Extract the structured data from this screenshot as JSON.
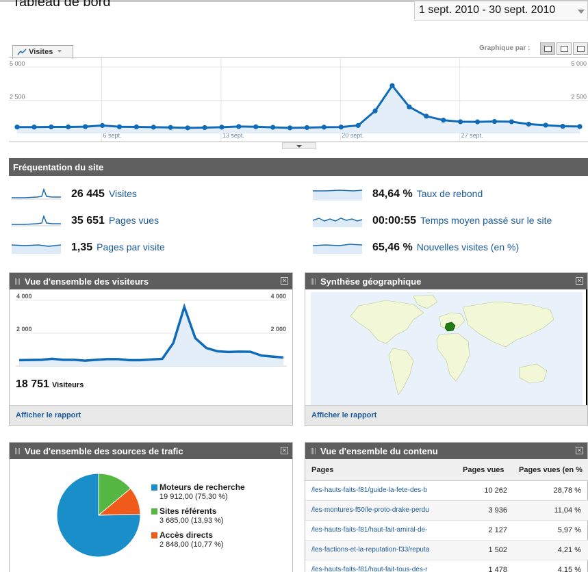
{
  "header": {
    "title": "Tableau de bord",
    "date_range": "1 sept. 2010 - 30 sept. 2010"
  },
  "main_chart": {
    "metric_label": "Visites",
    "graph_by_label": "Graphique par :"
  },
  "chart_data": [
    {
      "type": "line",
      "ylim": [
        0,
        5000
      ],
      "yticks": [
        "5 000",
        "2 500"
      ],
      "x_ticks": [
        "6 sept.",
        "13 sept.",
        "20 sept.",
        "27 sept."
      ],
      "series": [
        {
          "values": [
            480,
            480,
            490,
            490,
            510,
            600,
            500,
            490,
            470,
            450,
            420,
            440,
            470,
            520,
            500,
            460,
            420,
            440,
            470,
            480,
            600,
            1700,
            3600,
            2000,
            1300,
            1000,
            880,
            870,
            900,
            880,
            700,
            620,
            540,
            520
          ]
        }
      ]
    },
    {
      "type": "line",
      "ylim": [
        0,
        4000
      ],
      "yticks": [
        "4 000",
        "2 000"
      ],
      "series": [
        {
          "values": [
            360,
            370,
            380,
            440,
            380,
            380,
            330,
            380,
            420,
            420,
            360,
            360,
            400,
            440,
            1400,
            3600,
            1700,
            1100,
            900,
            860,
            880,
            870,
            640,
            580,
            520
          ]
        }
      ]
    },
    {
      "type": "pie",
      "labels": [
        "Moteurs de recherche",
        "Sites référents",
        "Accès directs"
      ],
      "values": [
        75.3,
        13.93,
        10.77
      ],
      "colors": [
        "#1a8ec8",
        "#56b843",
        "#f05a1a"
      ]
    }
  ],
  "section_title": "Fréquentation du site",
  "stats": [
    {
      "value": "26 445",
      "label": "Visites"
    },
    {
      "value": "84,64 %",
      "label": "Taux de rebond"
    },
    {
      "value": "35 651",
      "label": "Pages vues"
    },
    {
      "value": "00:00:55",
      "label": "Temps moyen passé sur le site"
    },
    {
      "value": "1,35",
      "label": "Pages par visite"
    },
    {
      "value": "65,46 %",
      "label": "Nouvelles visites (en %)"
    }
  ],
  "visitors_panel": {
    "title": "Vue d'ensemble des visiteurs",
    "count": "18 751",
    "count_label": "Visiteurs",
    "link": "Afficher le rapport"
  },
  "geo_panel": {
    "title": "Synthèse géographique",
    "link": "Afficher le rapport"
  },
  "traffic_panel": {
    "title": "Vue d'ensemble des sources de trafic",
    "items": [
      {
        "name": "Moteurs de recherche",
        "detail": "19 912,00 (75,30 %)"
      },
      {
        "name": "Sites référents",
        "detail": "3 685,00 (13,93 %)"
      },
      {
        "name": "Accès directs",
        "detail": "2 848,00 (10,77 %)"
      }
    ]
  },
  "content_panel": {
    "title": "Vue d'ensemble du contenu",
    "columns": [
      "Pages",
      "Pages vues",
      "Pages vues (en %"
    ],
    "rows": [
      {
        "page": "/les-hauts-faits-f81/guide-la-fete-des-b",
        "views": "10 262",
        "pct": "28,78 %"
      },
      {
        "page": "/les-montures-f50/le-proto-drake-perdu",
        "views": "3 936",
        "pct": "11,04 %"
      },
      {
        "page": "/les-hauts-faits-f81/haut-fait-amiral-de-",
        "views": "2 127",
        "pct": "5,97 %"
      },
      {
        "page": "/les-factions-et-la-reputation-f33/reputa",
        "views": "1 502",
        "pct": "4,21 %"
      },
      {
        "page": "/les-hauts-faits-f81/haut-fait-tous-des-r",
        "views": "1 478",
        "pct": "4,15 %"
      }
    ]
  }
}
